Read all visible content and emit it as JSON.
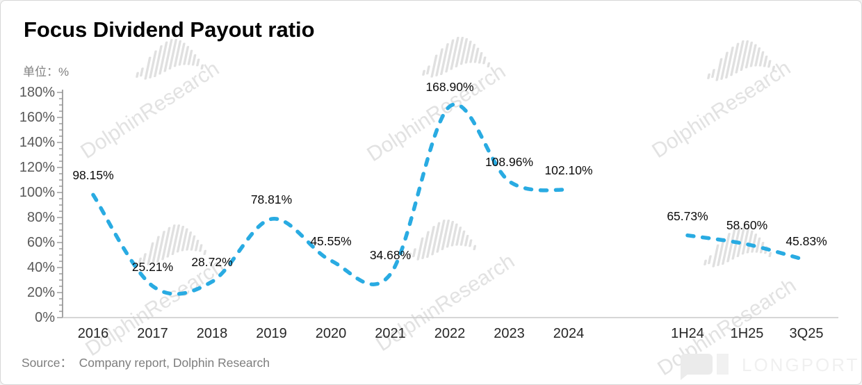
{
  "header": {
    "title": "Focus Dividend Payout ratio",
    "unit_label": "单位：%"
  },
  "source": {
    "text": "Source：  Company report, Dolphin Research"
  },
  "watermark": {
    "text": "DolphinResearch",
    "logo_text": "LONGPORT"
  },
  "colors": {
    "line": "#29ABE2",
    "y_axis": "#8e8e8e",
    "x_axis": "#c9c9c9",
    "y_label": "#595959",
    "x_label": "#262626",
    "data_label": "#0a0a0a",
    "gray_text": "#7d7d7d",
    "watermark": "#e2e2e2"
  },
  "chart_data": {
    "type": "line",
    "title": "Focus Dividend Payout ratio",
    "unit": "%",
    "line_style": "dashed",
    "smooth": true,
    "grid": false,
    "legend": "none",
    "ylim": [
      0,
      180
    ],
    "y_major_step": 20,
    "y_minor_step": 5,
    "y_tick_labels": [
      "0%",
      "20%",
      "40%",
      "60%",
      "80%",
      "100%",
      "120%",
      "140%",
      "160%",
      "180%"
    ],
    "categories": [
      "2016",
      "2017",
      "2018",
      "2019",
      "2020",
      "2021",
      "2022",
      "2023",
      "2024",
      "",
      "1H24",
      "1H25",
      "3Q25"
    ],
    "series": [
      {
        "name": "Dividend payout ratio",
        "segments": [
          {
            "start_index": 0,
            "categories": [
              "2016",
              "2017",
              "2018",
              "2019",
              "2020",
              "2021",
              "2022",
              "2023",
              "2024"
            ],
            "values": [
              98.15,
              25.21,
              28.72,
              78.81,
              45.55,
              34.68,
              168.9,
              108.96,
              102.1
            ],
            "labels": [
              "98.15%",
              "25.21%",
              "28.72%",
              "78.81%",
              "45.55%",
              "34.68%",
              "168.90%",
              "108.96%",
              "102.10%"
            ]
          },
          {
            "start_index": 10,
            "categories": [
              "1H24",
              "1H25",
              "3Q25"
            ],
            "values": [
              65.73,
              58.6,
              45.83
            ],
            "labels": [
              "65.73%",
              "58.60%",
              "45.83%"
            ]
          }
        ]
      }
    ]
  }
}
